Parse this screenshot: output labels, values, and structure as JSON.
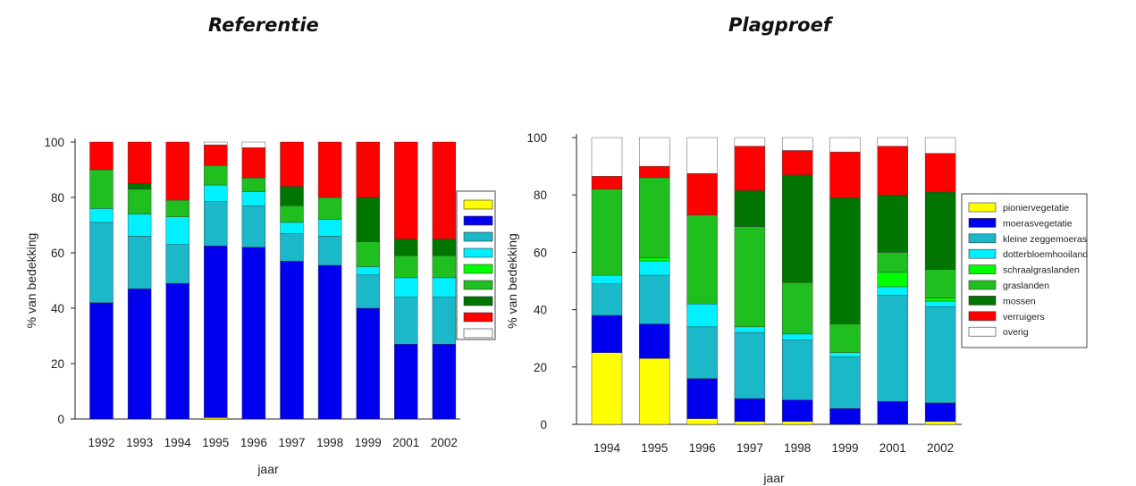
{
  "chart_data": [
    {
      "type": "bar",
      "stacked": true,
      "title": "Referentie",
      "xlabel": "jaar",
      "ylabel": "% van bedekking",
      "ylim": [
        0,
        100
      ],
      "yticks": [
        0,
        20,
        40,
        60,
        80,
        100
      ],
      "categories": [
        "1992",
        "1993",
        "1994",
        "1995",
        "1996",
        "1997",
        "1998",
        "1999",
        "2001",
        "2002"
      ],
      "legend": {
        "position": "right",
        "labels_shown": false
      },
      "series": [
        {
          "color": "#ffff00",
          "values": [
            0,
            0,
            0,
            0.5,
            0,
            0,
            0,
            0,
            0,
            0
          ]
        },
        {
          "color": "#0000ee",
          "values": [
            42,
            47,
            49,
            62,
            62,
            57,
            55.5,
            40,
            27,
            27
          ]
        },
        {
          "color": "#1ab8c8",
          "values": [
            29,
            19,
            14,
            16,
            15,
            10,
            10.5,
            12,
            17,
            17
          ]
        },
        {
          "color": "#00f0ff",
          "values": [
            5,
            8,
            10,
            6,
            5,
            4,
            6,
            3,
            7,
            7
          ]
        },
        {
          "color": "#00ff00",
          "values": [
            0,
            0,
            0,
            0,
            0,
            0,
            0,
            0,
            0,
            0
          ]
        },
        {
          "color": "#1fbf1f",
          "values": [
            14,
            9,
            6,
            7,
            5,
            6,
            8,
            9,
            8,
            8
          ]
        },
        {
          "color": "#007500",
          "values": [
            0,
            2,
            0,
            0,
            0,
            7,
            0,
            16,
            6,
            6
          ]
        },
        {
          "color": "#ff0000",
          "values": [
            10,
            15,
            21,
            7.5,
            11,
            16,
            20,
            20,
            35,
            35
          ]
        },
        {
          "color": "#ffffff",
          "values": [
            0,
            0,
            0,
            1,
            2,
            0,
            0,
            0,
            0,
            0
          ]
        }
      ]
    },
    {
      "type": "bar",
      "stacked": true,
      "title": "Plagproef",
      "xlabel": "jaar",
      "ylabel": "% van bedekking",
      "ylim": [
        0,
        100
      ],
      "yticks": [
        0,
        20,
        40,
        60,
        80,
        100
      ],
      "categories": [
        "1994",
        "1995",
        "1996",
        "1997",
        "1998",
        "1999",
        "2001",
        "2002"
      ],
      "legend": {
        "position": "right",
        "labels_shown": true
      },
      "series": [
        {
          "name": "pioniervegetatie",
          "color": "#ffff00",
          "values": [
            25,
            23,
            2,
            1,
            1,
            0,
            0,
            1
          ]
        },
        {
          "name": "moerasvegetatie",
          "color": "#0000ee",
          "values": [
            13,
            12,
            14,
            8,
            7.5,
            5.5,
            8,
            6.5
          ]
        },
        {
          "name": "kleine zeggemoeras",
          "color": "#1ab8c8",
          "values": [
            11,
            17,
            18,
            23,
            21,
            18,
            37,
            33.5
          ]
        },
        {
          "name": "dotterbloemhooiland",
          "color": "#00f0ff",
          "values": [
            3,
            5,
            8,
            2,
            2,
            1.5,
            3,
            2
          ]
        },
        {
          "name": "schraalgraslanden",
          "color": "#00ff00",
          "values": [
            0,
            1,
            0,
            0,
            0,
            0,
            5,
            1
          ]
        },
        {
          "name": "graslanden",
          "color": "#1fbf1f",
          "values": [
            30,
            28,
            31,
            35,
            18,
            10,
            7,
            10
          ]
        },
        {
          "name": "mossen",
          "color": "#007500",
          "values": [
            0,
            0,
            0,
            12.5,
            37.5,
            44,
            20,
            27
          ]
        },
        {
          "name": "verruigers",
          "color": "#ff0000",
          "values": [
            4.5,
            4,
            14.5,
            15.5,
            8.5,
            16,
            17,
            13.5
          ]
        },
        {
          "name": "overig",
          "color": "#ffffff",
          "values": [
            13.5,
            10,
            12.5,
            3,
            4.5,
            5,
            3,
            5.5
          ]
        }
      ]
    }
  ]
}
